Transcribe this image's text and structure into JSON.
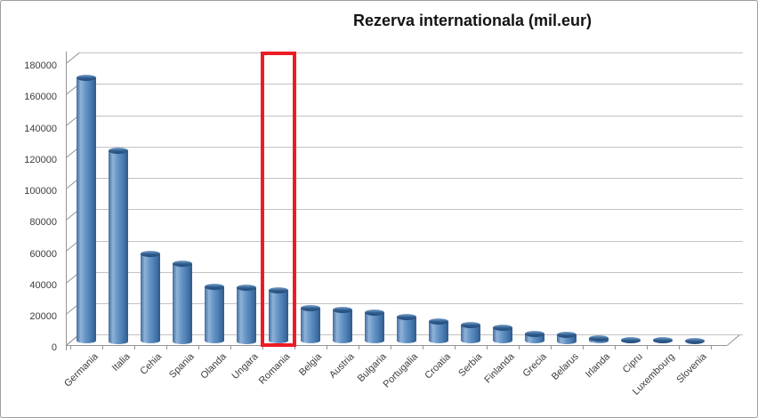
{
  "frame": {
    "background": "#ffffff",
    "border_color": "#9e9e9e"
  },
  "chart_data": {
    "type": "bar",
    "style": "3d-cylinder",
    "title": "Rezerva internationala (mil.eur)",
    "categories": [
      "Germania",
      "Italia",
      "Cehia",
      "Spania",
      "Olanda",
      "Ungara",
      "Romania",
      "Belgia",
      "Austria",
      "Bulgaria",
      "Portugalia",
      "Croatia",
      "Serbia",
      "Finlanda",
      "Grecia",
      "Belarus",
      "Irlanda",
      "Cipru",
      "Luxembourg",
      "Slovenia"
    ],
    "values": [
      169000,
      122500,
      56500,
      50000,
      35400,
      35000,
      33200,
      21800,
      20500,
      19000,
      16200,
      13500,
      11000,
      9500,
      5500,
      5000,
      2700,
      1300,
      1600,
      1000
    ],
    "xlabel": "",
    "ylabel": "",
    "ylim": [
      0,
      180000
    ],
    "y_ticks": [
      0,
      20000,
      40000,
      60000,
      80000,
      100000,
      120000,
      140000,
      160000,
      180000
    ],
    "grid": true,
    "legend": false,
    "highlight": {
      "category": "Romania",
      "shape": "rectangle",
      "color": "#ed1c24"
    },
    "colors": {
      "bar_main": "#4f81bd",
      "bar_gradient": [
        "#45709f",
        "#8fb2d8",
        "#6796c6",
        "#4d7fb5",
        "#2f5b8d"
      ],
      "bar_cap_light": "#7aa2cc",
      "bar_cap_dark": "#2d5a8b",
      "bar_cap_deep": "#244d7a",
      "gridline": "#c2c2c2",
      "axis": "#959595",
      "tick_label": "#3d3d3d",
      "title": "#141414"
    }
  }
}
